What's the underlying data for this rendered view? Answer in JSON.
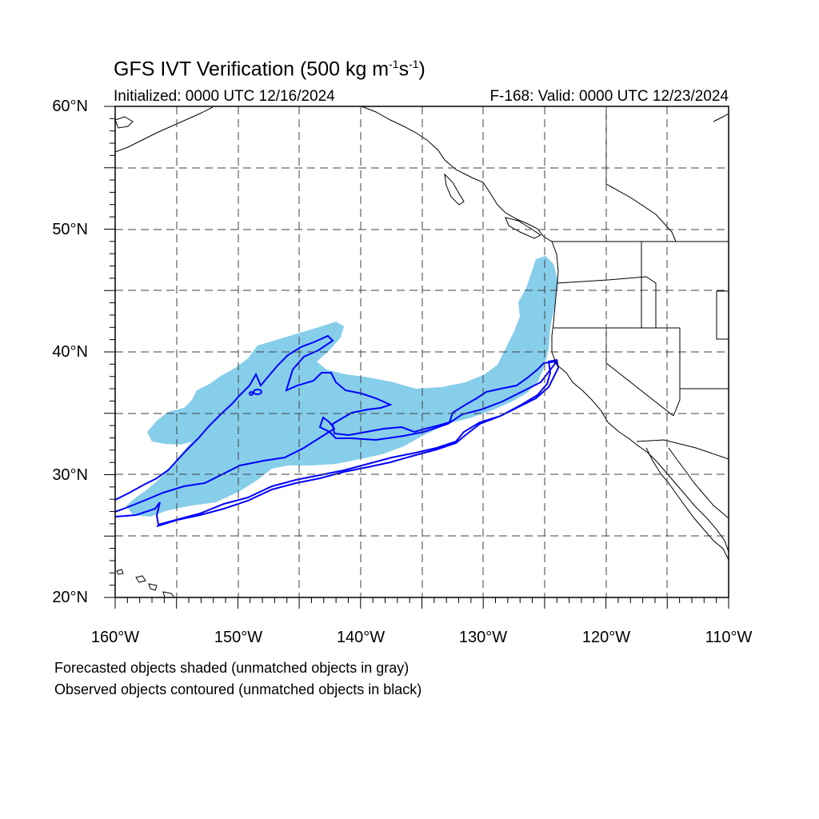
{
  "header": {
    "title_main": "GFS IVT Verification (500 kg m",
    "title_sup1": "-1",
    "title_mid": "s",
    "title_sup2": "-1",
    "title_end": ")",
    "initialized": "Initialized: 0000 UTC 12/16/2024",
    "valid": "F-168: Valid: 0000 UTC 12/23/2024"
  },
  "axes": {
    "lat_labels": [
      "60°N",
      "50°N",
      "40°N",
      "30°N",
      "20°N"
    ],
    "lon_labels": [
      "160°W",
      "150°W",
      "140°W",
      "130°W",
      "120°W",
      "110°W"
    ],
    "lat_range": [
      20,
      60
    ],
    "lon_range": [
      -160,
      -110
    ],
    "grid": true
  },
  "legend_notes": {
    "forecast": "Forecasted objects shaded (unmatched objects in gray)",
    "observed": "Observed objects contoured (unmatched objects in black)"
  },
  "colors": {
    "forecast_fill": "#87ceeb",
    "observed_contour": "#0000ff",
    "coastline": "#000000",
    "grid": "#404040"
  }
}
